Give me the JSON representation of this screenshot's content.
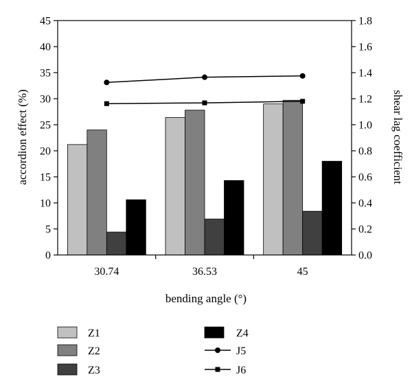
{
  "chart_data": {
    "type": "bar",
    "title": "",
    "xlabel": "bending angle (°)",
    "ylabel": "accordion effect (%)",
    "y2label": "shear lag coefficient",
    "categories": [
      "30.74",
      "36.53",
      "45"
    ],
    "ylim": [
      0,
      45
    ],
    "y2lim": [
      0,
      1.8
    ],
    "yticks": [
      "0",
      "5",
      "10",
      "15",
      "20",
      "25",
      "30",
      "35",
      "40",
      "45"
    ],
    "y2ticks": [
      "0.0",
      "0.2",
      "0.4",
      "0.6",
      "0.8",
      "1.0",
      "1.2",
      "1.4",
      "1.6",
      "1.8"
    ],
    "grid": false,
    "legend_position": "bottom",
    "bar_series": [
      {
        "name": "Z1",
        "color": "#c0c0c0",
        "values": [
          21.2,
          26.4,
          29.0
        ]
      },
      {
        "name": "Z2",
        "color": "#808080",
        "values": [
          24.0,
          27.8,
          29.7
        ]
      },
      {
        "name": "Z3",
        "color": "#404040",
        "values": [
          4.4,
          6.9,
          8.4
        ]
      },
      {
        "name": "Z4",
        "color": "#000000",
        "values": [
          10.6,
          14.3,
          18.0
        ]
      }
    ],
    "line_series": [
      {
        "name": "J5",
        "axis": "right",
        "marker": "circle",
        "values": [
          1.325,
          1.365,
          1.375
        ]
      },
      {
        "name": "J6",
        "axis": "right",
        "marker": "square",
        "values": [
          1.162,
          1.168,
          1.18
        ]
      }
    ]
  }
}
